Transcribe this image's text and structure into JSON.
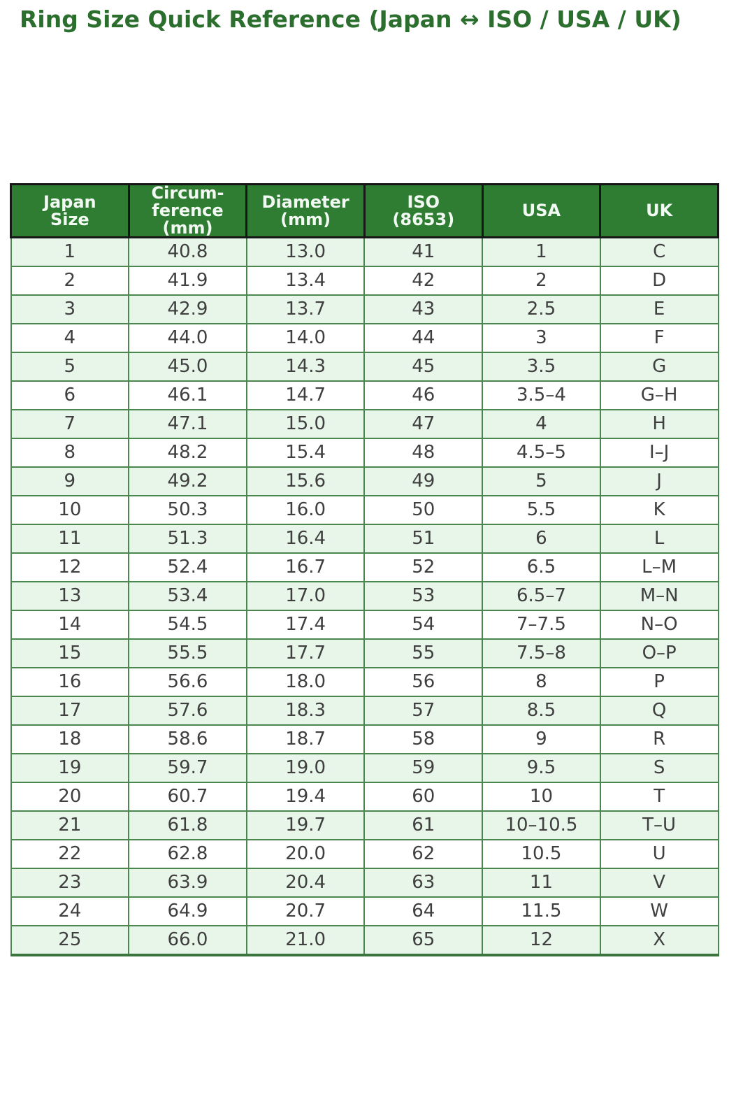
{
  "page_title": "Ring Size Quick Reference (Japan ↔ ISO / USA / UK)",
  "chart_data": {
    "type": "table",
    "title": "Ring Size Quick Reference (Japan ↔ ISO / USA / UK)",
    "columns": [
      "Japan\nSize",
      "Circum-\nference\n(mm)",
      "Diameter\n(mm)",
      "ISO\n(8653)",
      "USA",
      "UK"
    ],
    "rows": [
      [
        "1",
        "40.8",
        "13.0",
        "41",
        "1",
        "C"
      ],
      [
        "2",
        "41.9",
        "13.4",
        "42",
        "2",
        "D"
      ],
      [
        "3",
        "42.9",
        "13.7",
        "43",
        "2.5",
        "E"
      ],
      [
        "4",
        "44.0",
        "14.0",
        "44",
        "3",
        "F"
      ],
      [
        "5",
        "45.0",
        "14.3",
        "45",
        "3.5",
        "G"
      ],
      [
        "6",
        "46.1",
        "14.7",
        "46",
        "3.5–4",
        "G–H"
      ],
      [
        "7",
        "47.1",
        "15.0",
        "47",
        "4",
        "H"
      ],
      [
        "8",
        "48.2",
        "15.4",
        "48",
        "4.5–5",
        "I–J"
      ],
      [
        "9",
        "49.2",
        "15.6",
        "49",
        "5",
        "J"
      ],
      [
        "10",
        "50.3",
        "16.0",
        "50",
        "5.5",
        "K"
      ],
      [
        "11",
        "51.3",
        "16.4",
        "51",
        "6",
        "L"
      ],
      [
        "12",
        "52.4",
        "16.7",
        "52",
        "6.5",
        "L–M"
      ],
      [
        "13",
        "53.4",
        "17.0",
        "53",
        "6.5–7",
        "M–N"
      ],
      [
        "14",
        "54.5",
        "17.4",
        "54",
        "7–7.5",
        "N–O"
      ],
      [
        "15",
        "55.5",
        "17.7",
        "55",
        "7.5–8",
        "O–P"
      ],
      [
        "16",
        "56.6",
        "18.0",
        "56",
        "8",
        "P"
      ],
      [
        "17",
        "57.6",
        "18.3",
        "57",
        "8.5",
        "Q"
      ],
      [
        "18",
        "58.6",
        "18.7",
        "58",
        "9",
        "R"
      ],
      [
        "19",
        "59.7",
        "19.0",
        "59",
        "9.5",
        "S"
      ],
      [
        "20",
        "60.7",
        "19.4",
        "60",
        "10",
        "T"
      ],
      [
        "21",
        "61.8",
        "19.7",
        "61",
        "10–10.5",
        "T–U"
      ],
      [
        "22",
        "62.8",
        "20.0",
        "62",
        "10.5",
        "U"
      ],
      [
        "23",
        "63.9",
        "20.4",
        "63",
        "11",
        "V"
      ],
      [
        "24",
        "64.9",
        "20.7",
        "64",
        "11.5",
        "W"
      ],
      [
        "25",
        "66.0",
        "21.0",
        "65",
        "12",
        "X"
      ]
    ]
  },
  "colors": {
    "title_text": "#2b6e2e",
    "header_bg": "#2e7d32",
    "header_text": "#f2f9f2",
    "header_border": "#161616",
    "row_alt_bg": "#e8f5e9",
    "row_bg": "#ffffff",
    "body_border": "#4a874e",
    "bottom_border": "#3c7440",
    "cell_text": "#3f3f3f"
  }
}
